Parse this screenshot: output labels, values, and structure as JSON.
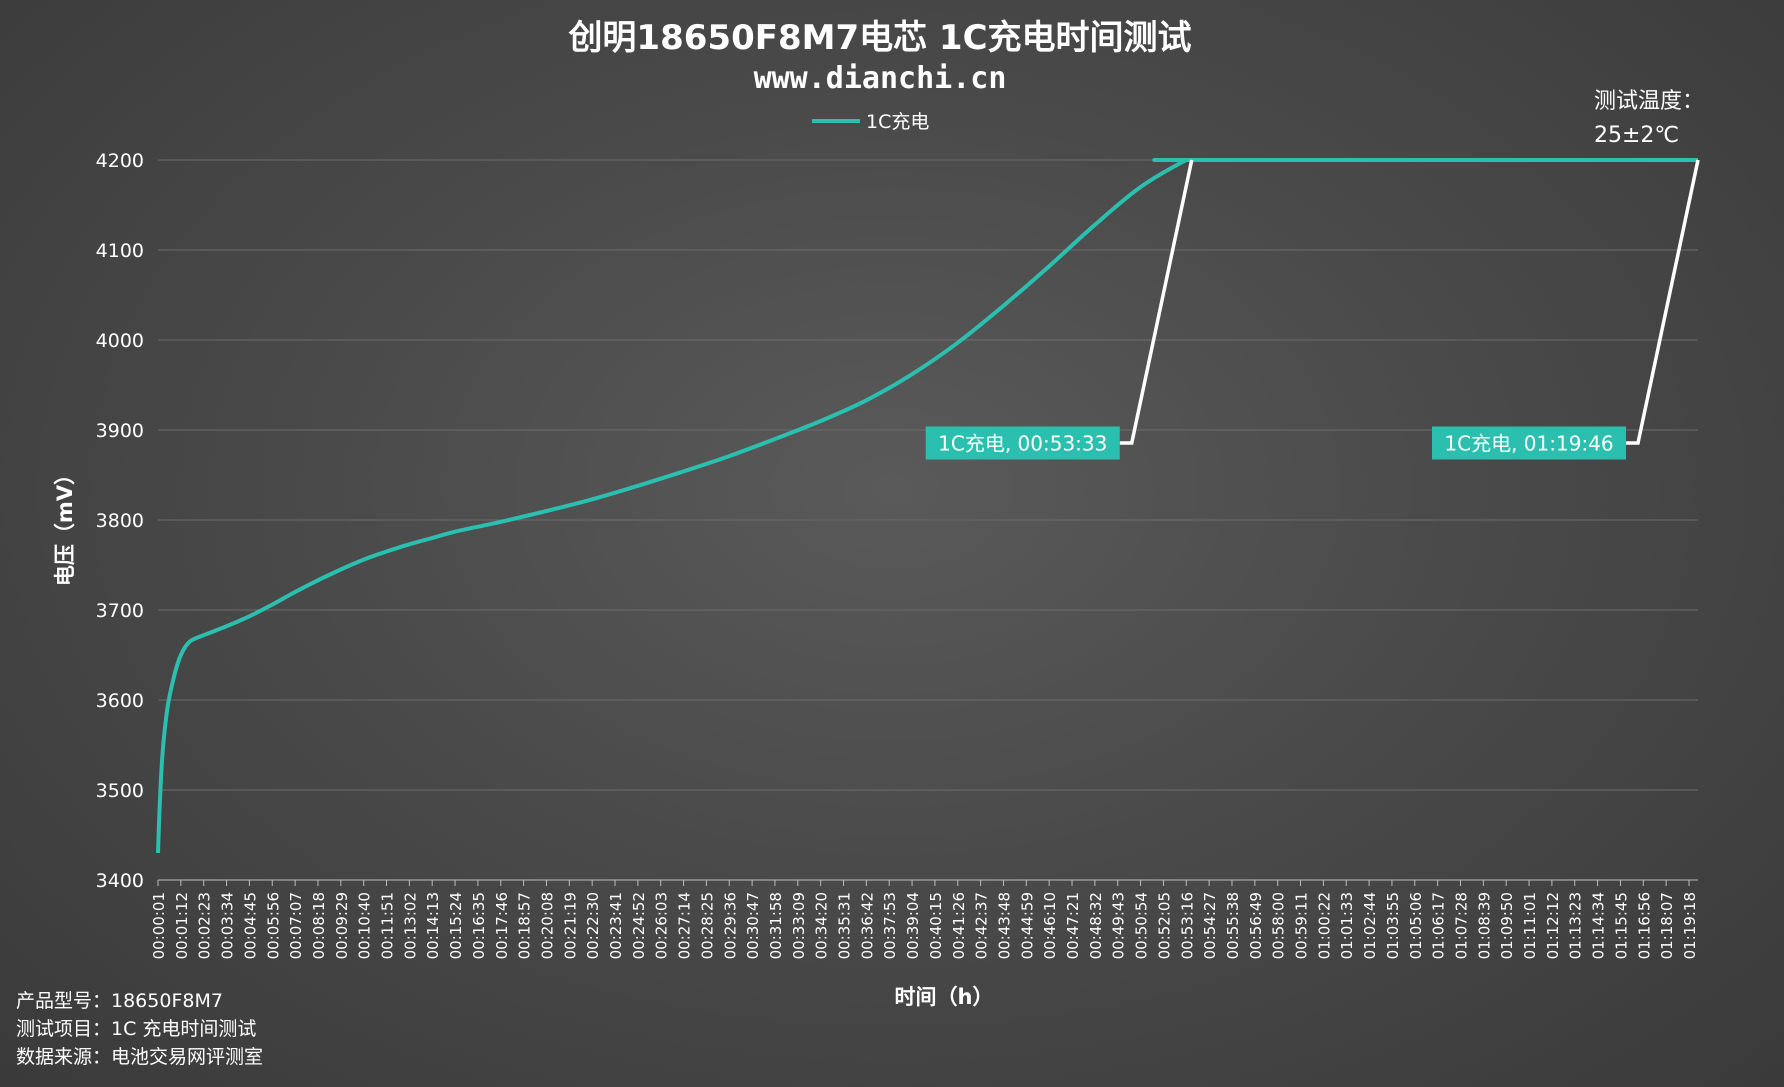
{
  "chart_data": {
    "type": "line",
    "title": "创明18650F8M7电芯 1C充电时间测试",
    "subtitle": "www.dianchi.cn",
    "xlabel": "时间（h）",
    "ylabel": "电压（mV）",
    "ylim": [
      3400,
      4200
    ],
    "yticks": [
      3400,
      3500,
      3600,
      3700,
      3800,
      3900,
      4000,
      4100,
      4200
    ],
    "grid": true,
    "legend_position": "top-center",
    "line_color": "#2bbfb0",
    "series": [
      {
        "name": "1C充电",
        "points": [
          [
            "00:00:01",
            3430
          ],
          [
            "00:00:06",
            3480
          ],
          [
            "00:00:15",
            3540
          ],
          [
            "00:00:30",
            3590
          ],
          [
            "00:00:50",
            3625
          ],
          [
            "00:01:12",
            3650
          ],
          [
            "00:01:40",
            3665
          ],
          [
            "00:02:23",
            3672
          ],
          [
            "00:03:34",
            3682
          ],
          [
            "00:04:45",
            3693
          ],
          [
            "00:05:56",
            3706
          ],
          [
            "00:07:07",
            3720
          ],
          [
            "00:08:18",
            3733
          ],
          [
            "00:09:29",
            3745
          ],
          [
            "00:10:40",
            3756
          ],
          [
            "00:11:51",
            3765
          ],
          [
            "00:13:02",
            3773
          ],
          [
            "00:14:13",
            3780
          ],
          [
            "00:15:24",
            3787
          ],
          [
            "00:17:46",
            3798
          ],
          [
            "00:20:08",
            3810
          ],
          [
            "00:22:30",
            3823
          ],
          [
            "00:24:52",
            3838
          ],
          [
            "00:27:14",
            3854
          ],
          [
            "00:29:36",
            3871
          ],
          [
            "00:31:58",
            3890
          ],
          [
            "00:34:20",
            3910
          ],
          [
            "00:36:42",
            3933
          ],
          [
            "00:39:04",
            3962
          ],
          [
            "00:41:26",
            3997
          ],
          [
            "00:43:48",
            4038
          ],
          [
            "00:46:10",
            4082
          ],
          [
            "00:48:32",
            4128
          ],
          [
            "00:50:54",
            4170
          ],
          [
            "00:53:16",
            4200
          ],
          [
            "00:53:33",
            4200
          ],
          [
            "01:19:46",
            4200
          ]
        ]
      }
    ],
    "x_tick_labels": [
      "00:00:01",
      "00:01:12",
      "00:02:23",
      "00:03:34",
      "00:04:45",
      "00:05:56",
      "00:07:07",
      "00:08:18",
      "00:09:29",
      "00:10:40",
      "00:11:51",
      "00:13:02",
      "00:14:13",
      "00:15:24",
      "00:16:35",
      "00:17:46",
      "00:18:57",
      "00:20:08",
      "00:21:19",
      "00:22:30",
      "00:23:41",
      "00:24:52",
      "00:26:03",
      "00:27:14",
      "00:28:25",
      "00:29:36",
      "00:30:47",
      "00:31:58",
      "00:33:09",
      "00:34:20",
      "00:35:31",
      "00:36:42",
      "00:37:53",
      "00:39:04",
      "00:40:15",
      "00:41:26",
      "00:42:37",
      "00:43:48",
      "00:44:59",
      "00:46:10",
      "00:47:21",
      "00:48:32",
      "00:49:43",
      "00:50:54",
      "00:52:05",
      "00:53:16",
      "00:54:27",
      "00:55:38",
      "00:56:49",
      "00:58:00",
      "00:59:11",
      "01:00:22",
      "01:01:33",
      "01:02:44",
      "01:03:55",
      "01:05:06",
      "01:06:17",
      "01:07:28",
      "01:08:39",
      "01:09:50",
      "01:11:01",
      "01:12:12",
      "01:13:23",
      "01:14:34",
      "01:15:45",
      "01:16:56",
      "01:18:07",
      "01:19:18"
    ],
    "annotations": [
      {
        "text": "1C充电, 00:53:33",
        "x": "00:53:33",
        "y": 4200
      },
      {
        "text": "1C充电, 01:19:46",
        "x": "01:19:46",
        "y": 4200
      }
    ],
    "note_lines": [
      "测试温度：",
      "25±2℃"
    ]
  },
  "footer": {
    "model": "产品型号：18650F8M7",
    "item": "测试项目：1C 充电时间测试",
    "source": "数据来源：电池交易网评测室"
  }
}
